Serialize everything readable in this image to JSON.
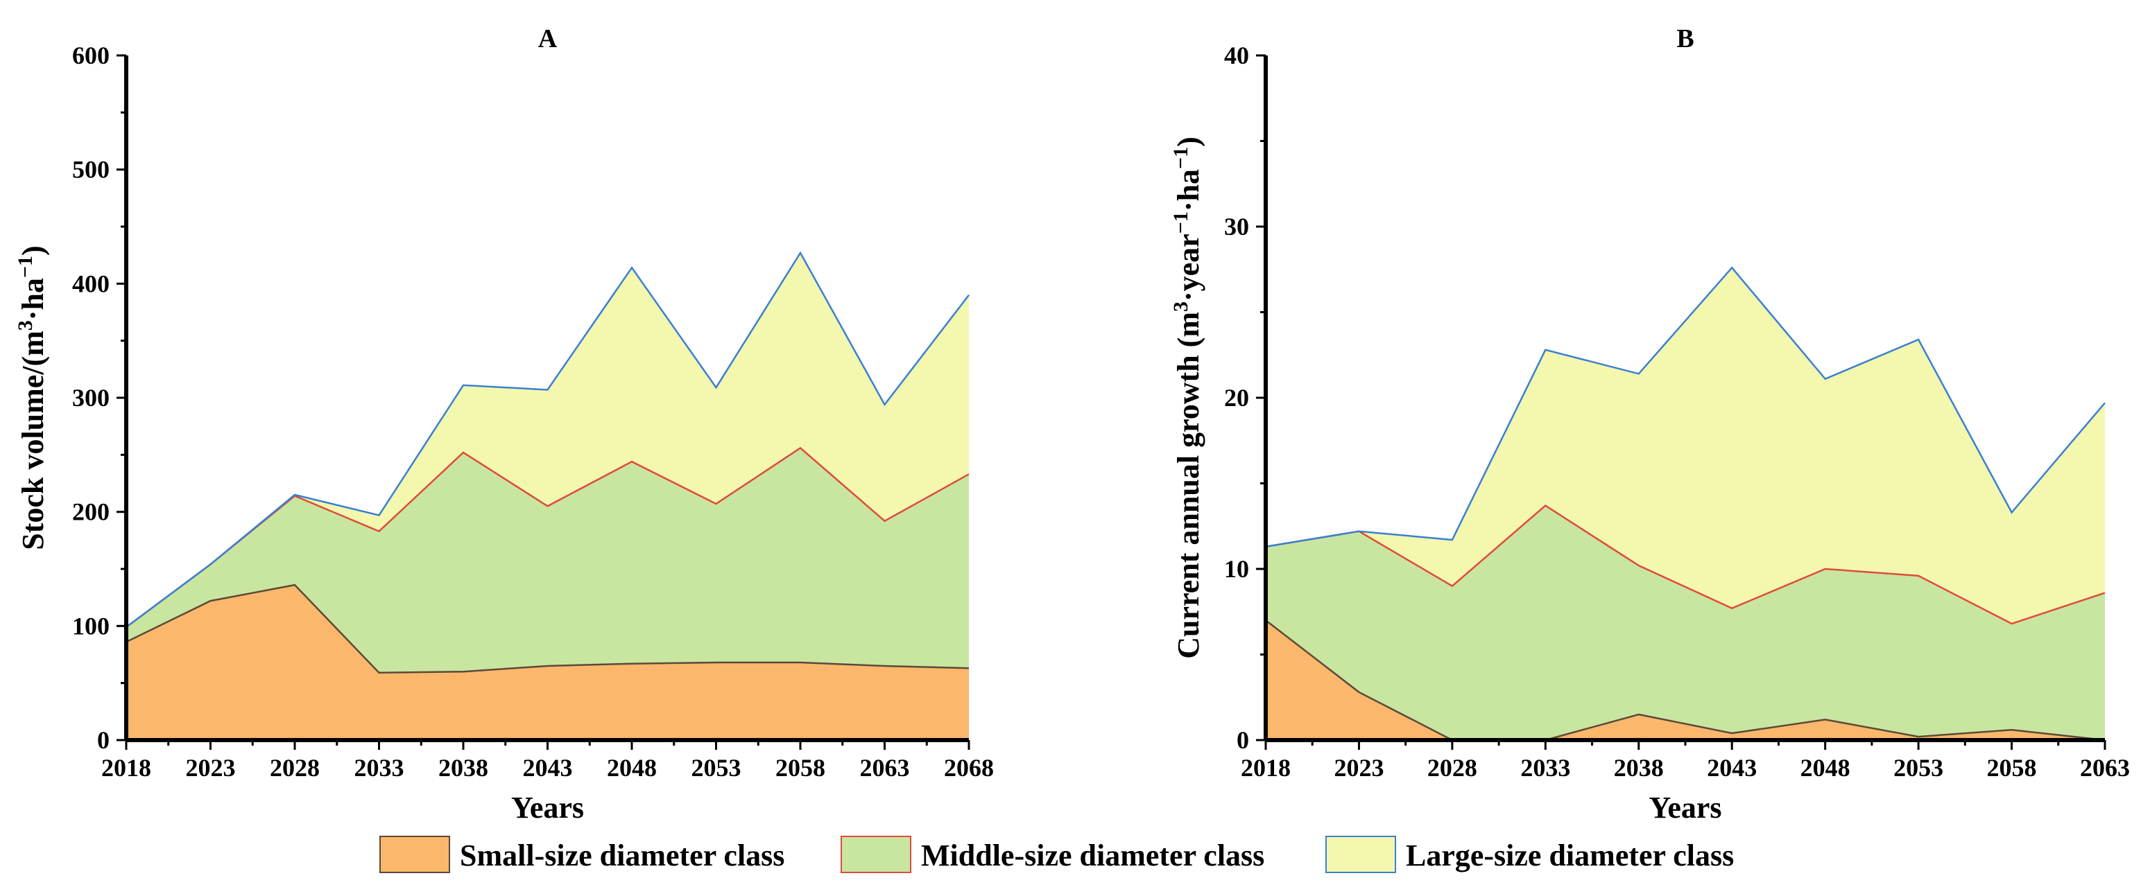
{
  "chart_data": [
    {
      "type": "area",
      "stacked": true,
      "title": "A",
      "xlabel": "Years",
      "ylabel": "Stock volume/(m3·ha−1)",
      "ylabel_parts": {
        "base": "Stock volume/(m",
        "sup1": "3",
        "mid": "·ha",
        "sup2": "−1",
        "end": ")"
      },
      "x": [
        2018,
        2023,
        2028,
        2033,
        2038,
        2043,
        2048,
        2053,
        2058,
        2063,
        2068
      ],
      "xlim": [
        2018,
        2068
      ],
      "ylim": [
        0,
        600
      ],
      "yticks": [
        0,
        100,
        200,
        300,
        400,
        500,
        600
      ],
      "series": [
        {
          "name": "Small-size diameter class",
          "values": [
            86,
            122,
            136,
            59,
            60,
            65,
            67,
            68,
            68,
            65,
            63
          ]
        },
        {
          "name": "Middle-size diameter class",
          "values": [
            13,
            32,
            78,
            124,
            192,
            140,
            177,
            139,
            188,
            127,
            170
          ]
        },
        {
          "name": "Large-size diameter class",
          "values": [
            0,
            0,
            1,
            14,
            59,
            102,
            170,
            102,
            171,
            102,
            157
          ]
        }
      ]
    },
    {
      "type": "area",
      "stacked": true,
      "title": "B",
      "xlabel": "Years",
      "ylabel": "Current annual growth (m3·year−1·ha−1)",
      "ylabel_parts": {
        "base": "Current annual growth (m",
        "sup1": "3",
        "mid": "·year",
        "sup2": "−1",
        "mid2": "·ha",
        "sup3": "−1",
        "end": ")"
      },
      "x": [
        2018,
        2023,
        2028,
        2033,
        2038,
        2043,
        2048,
        2053,
        2058,
        2063
      ],
      "xlim": [
        2018,
        2063
      ],
      "ylim": [
        0,
        40
      ],
      "yticks": [
        0,
        10,
        20,
        30,
        40
      ],
      "series": [
        {
          "name": "Small-size diameter class",
          "values": [
            7.0,
            2.8,
            0,
            0,
            1.5,
            0.4,
            1.2,
            0.2,
            0.6,
            0
          ]
        },
        {
          "name": "Middle-size diameter class",
          "values": [
            4.3,
            9.4,
            9.0,
            13.7,
            8.7,
            7.3,
            8.8,
            9.4,
            6.2,
            8.6
          ]
        },
        {
          "name": "Large-size diameter class",
          "values": [
            0,
            0,
            2.7,
            9.1,
            11.2,
            19.9,
            11.1,
            13.8,
            6.5,
            11.1
          ]
        }
      ]
    }
  ],
  "legend": {
    "items": [
      {
        "label": "Small-size diameter class"
      },
      {
        "label": "Middle-size diameter class"
      },
      {
        "label": "Large-size diameter class"
      }
    ]
  },
  "colors": {
    "small_fill": "#fbb76c",
    "small_line": "#5a4a38",
    "middle_fill": "#c9e6a0",
    "middle_line": "#e04a3c",
    "large_fill": "#f3f8ae",
    "large_line": "#3a7fd4"
  }
}
